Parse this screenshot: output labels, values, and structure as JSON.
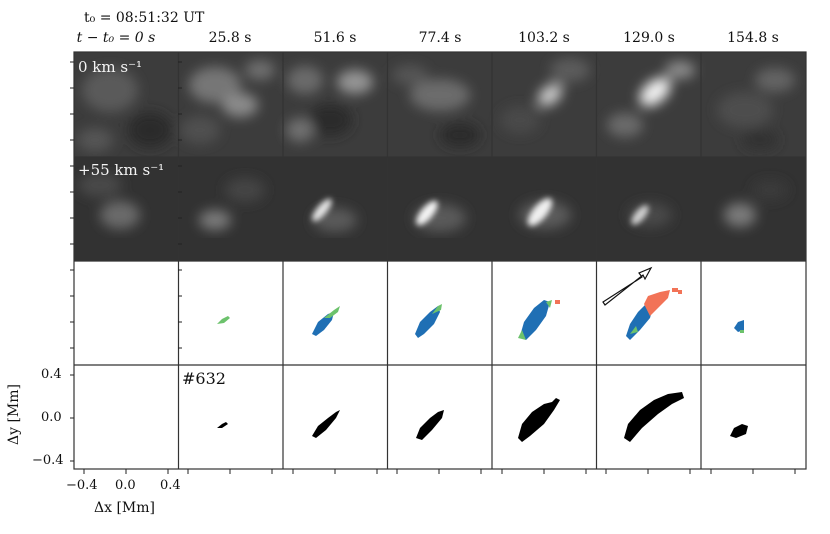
{
  "header": {
    "t0_line": "t₀ = 08:51:32 UT",
    "first_col": "t − t₀ = 0 s"
  },
  "columns": [
    "",
    "25.8 s",
    "51.6 s",
    "77.4 s",
    "103.2 s",
    "129.0 s",
    "154.8 s"
  ],
  "row_labels": {
    "row1": "0 km s⁻¹",
    "row2": "+55 km s⁻¹"
  },
  "event_label": "#632",
  "axes": {
    "ylabel": "Δy [Mm]",
    "xlabel": "Δx [Mm]",
    "yticks": [
      "0.4",
      "0.0",
      "−0.4"
    ],
    "xticks": [
      "−0.4",
      "0.0",
      "0.4"
    ]
  },
  "colors": {
    "frame": "#333333",
    "blue": "#1f6fb4",
    "green": "#6cc26c",
    "red": "#f27357",
    "black": "#000000"
  }
}
